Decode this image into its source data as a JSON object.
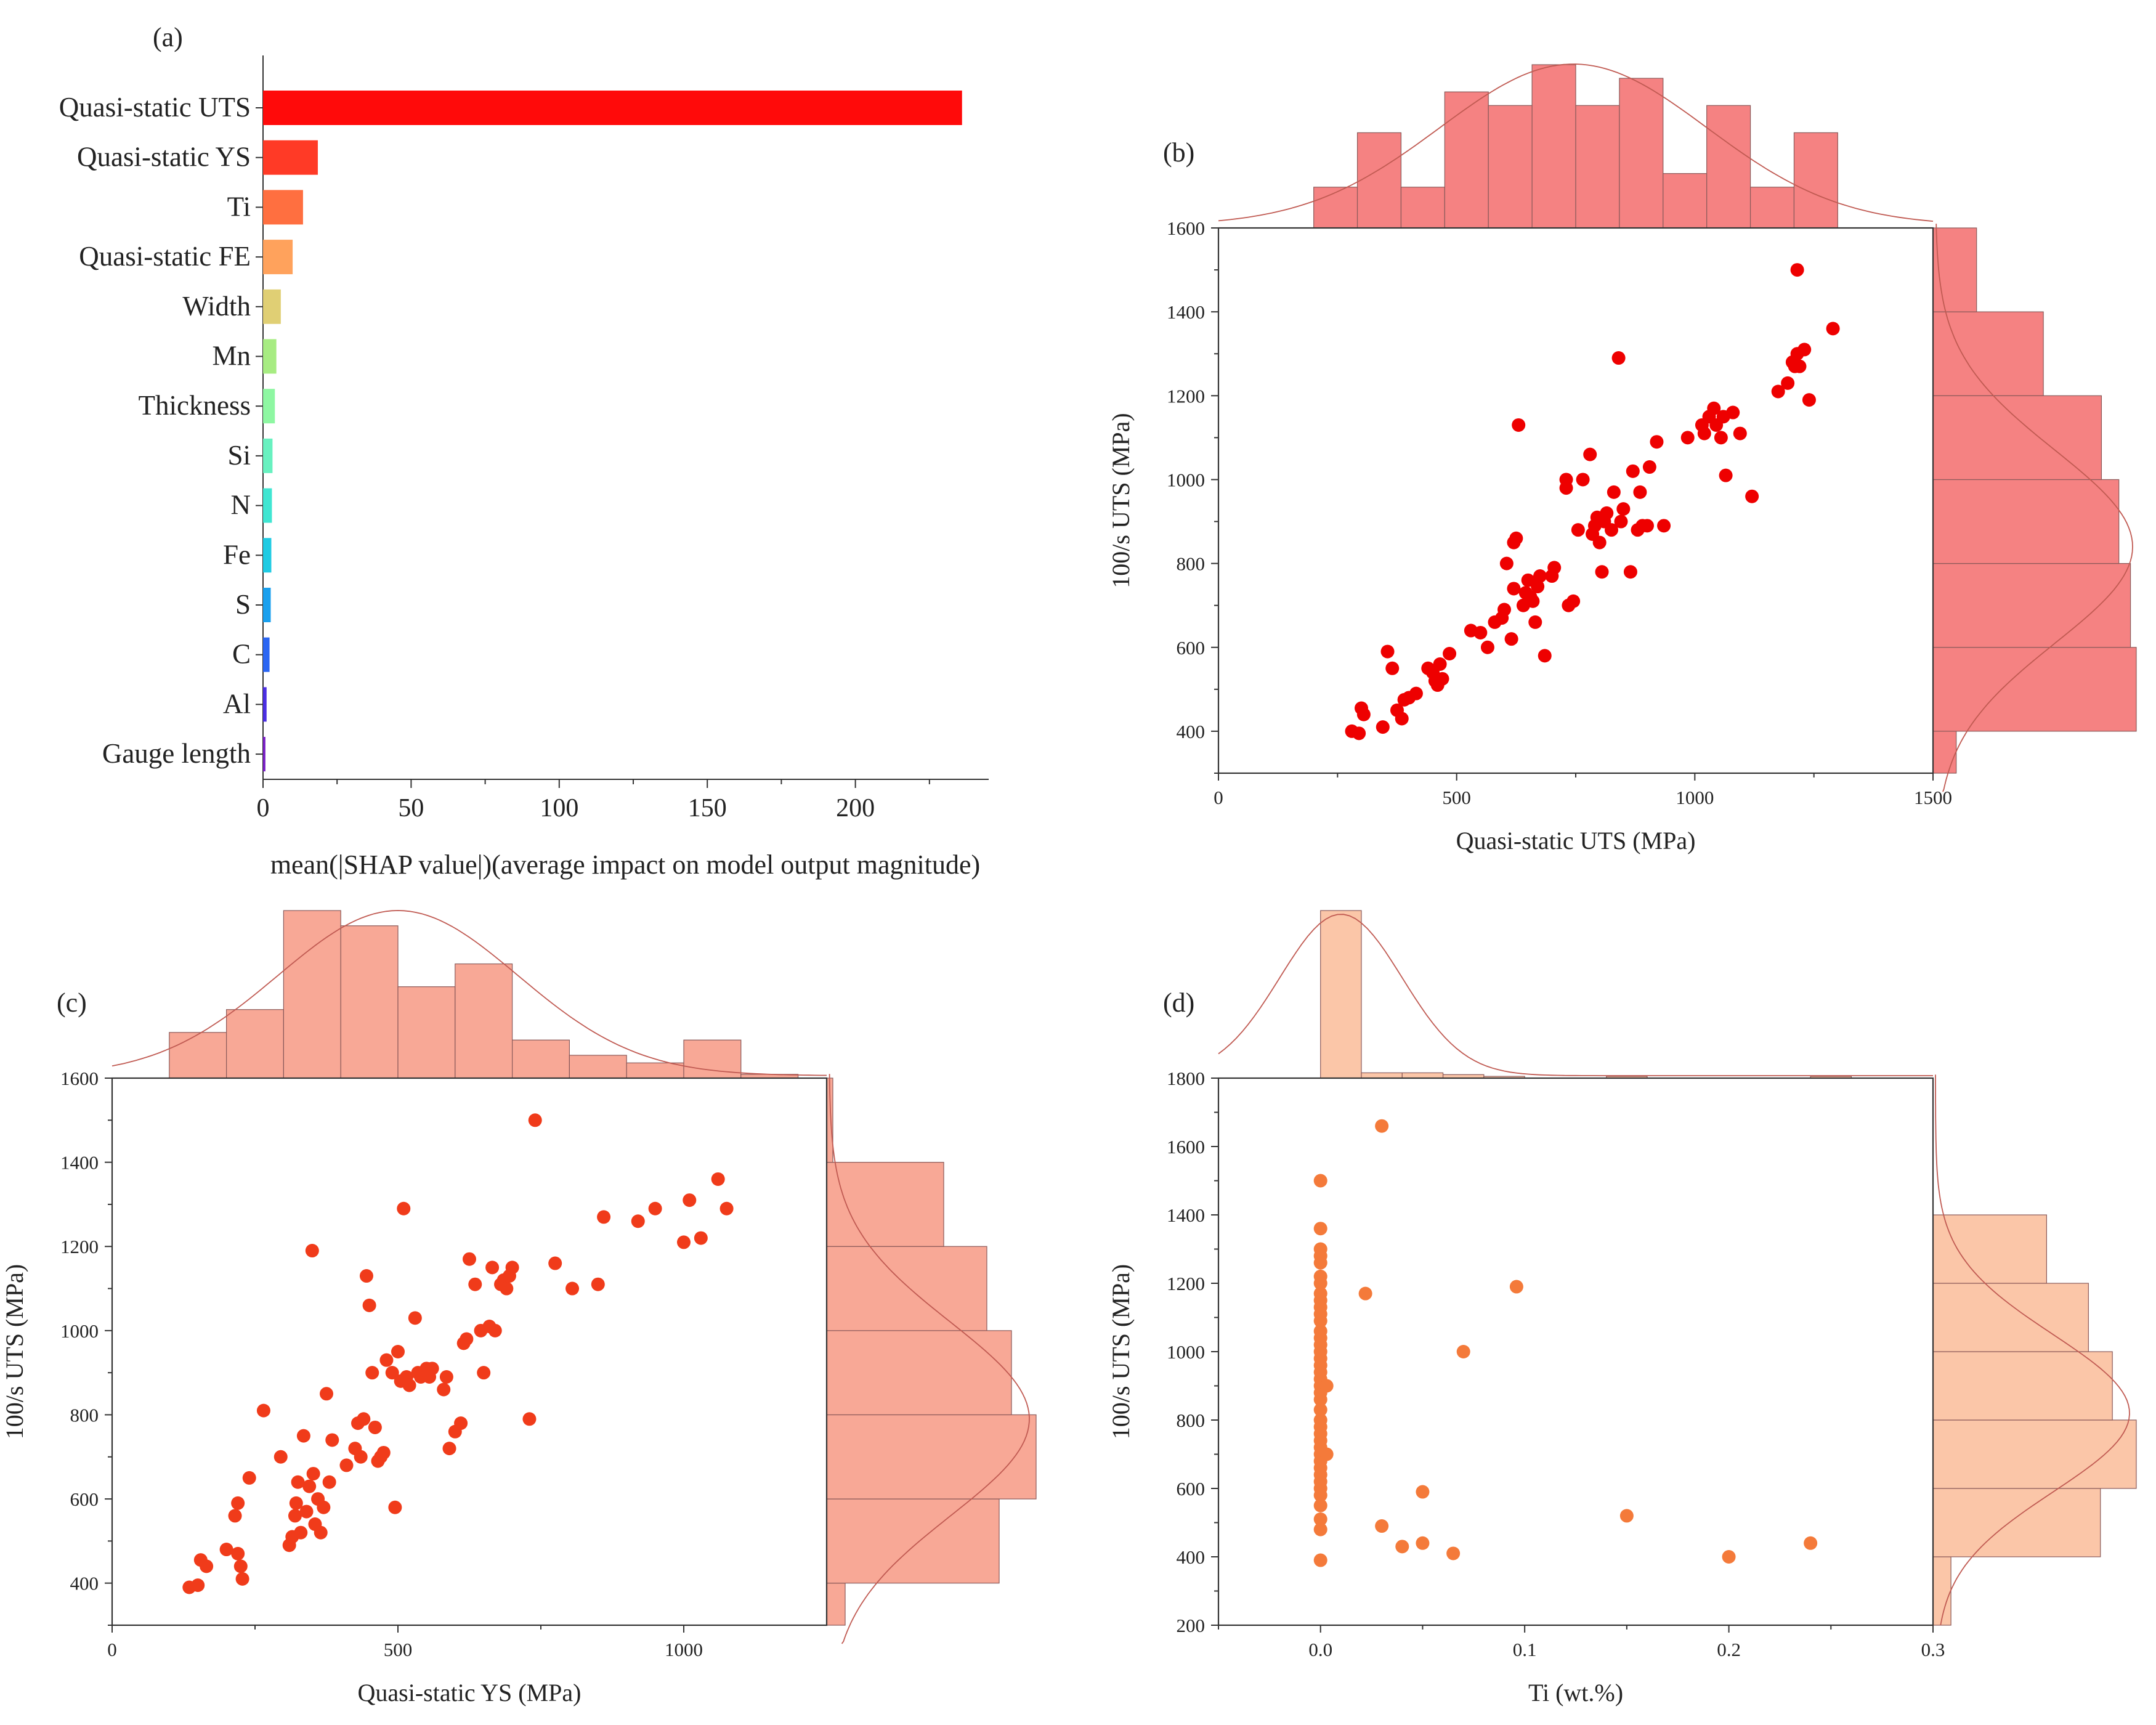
{
  "chart_data": [
    {
      "panel": "(a)",
      "type": "bar",
      "orientation": "horizontal",
      "xlabel": "mean(|SHAP value|)(average impact on model output magnitude)",
      "xlim": [
        0,
        245
      ],
      "xticks": [
        "0",
        "50",
        "100",
        "150",
        "200"
      ],
      "categories": [
        "Quasi-static UTS",
        "Quasi-static YS",
        "Ti",
        "Quasi-static FE",
        "Width",
        "Mn",
        "Thickness",
        "Si",
        "N",
        "Fe",
        "S",
        "C",
        "Al",
        "Gauge length"
      ],
      "values": [
        236,
        18.5,
        13.5,
        10,
        6,
        4.5,
        4,
        3.2,
        3,
        2.8,
        2.6,
        2.2,
        1.2,
        0.8
      ],
      "colors": [
        "#ff0a0a",
        "#ff3a26",
        "#ff6f40",
        "#ffa25c",
        "#e0cf74",
        "#a7ec82",
        "#8ef7a2",
        "#68f1c0",
        "#40e6d2",
        "#1fcbe3",
        "#1aa0ee",
        "#2b66f3",
        "#4b2ee4",
        "#7a1fc7"
      ]
    },
    {
      "panel": "(b)",
      "type": "scatter",
      "xlabel": "Quasi-static UTS (MPa)",
      "ylabel": "100/s UTS (MPa)",
      "xlim": [
        0,
        1500
      ],
      "ylim": [
        300,
        1600
      ],
      "xticks": [
        "0",
        "500",
        "1000",
        "1500"
      ],
      "yticks": [
        "400",
        "600",
        "800",
        "1000",
        "1200",
        "1400",
        "1600"
      ],
      "color": "#ee0000",
      "hist_color": "#f47b7b",
      "x_hist": {
        "edges": [
          200,
          1300
        ],
        "counts": [
          3,
          7,
          3,
          10,
          9,
          12,
          9,
          11,
          4,
          9,
          3,
          7
        ]
      },
      "y_hist": {
        "edges": [
          200,
          1600
        ],
        "counts": [
          0.8,
          7,
          6.8,
          6.4,
          5.8,
          3.8,
          1.5
        ]
      },
      "points": [
        [
          280,
          400
        ],
        [
          295,
          395
        ],
        [
          300,
          455
        ],
        [
          305,
          440
        ],
        [
          345,
          410
        ],
        [
          355,
          590
        ],
        [
          365,
          550
        ],
        [
          375,
          450
        ],
        [
          385,
          430
        ],
        [
          390,
          475
        ],
        [
          400,
          480
        ],
        [
          415,
          490
        ],
        [
          440,
          550
        ],
        [
          450,
          540
        ],
        [
          455,
          520
        ],
        [
          460,
          510
        ],
        [
          465,
          560
        ],
        [
          470,
          525
        ],
        [
          485,
          585
        ],
        [
          530,
          640
        ],
        [
          550,
          635
        ],
        [
          565,
          600
        ],
        [
          580,
          660
        ],
        [
          595,
          670
        ],
        [
          600,
          690
        ],
        [
          605,
          800
        ],
        [
          615,
          620
        ],
        [
          620,
          740
        ],
        [
          620,
          850
        ],
        [
          625,
          860
        ],
        [
          630,
          1130
        ],
        [
          640,
          700
        ],
        [
          645,
          730
        ],
        [
          650,
          760
        ],
        [
          655,
          720
        ],
        [
          660,
          710
        ],
        [
          665,
          660
        ],
        [
          670,
          745
        ],
        [
          675,
          770
        ],
        [
          685,
          580
        ],
        [
          700,
          770
        ],
        [
          705,
          790
        ],
        [
          730,
          1000
        ],
        [
          730,
          980
        ],
        [
          735,
          700
        ],
        [
          745,
          710
        ],
        [
          755,
          880
        ],
        [
          765,
          1000
        ],
        [
          780,
          1060
        ],
        [
          785,
          870
        ],
        [
          790,
          890
        ],
        [
          795,
          910
        ],
        [
          800,
          850
        ],
        [
          805,
          780
        ],
        [
          810,
          900
        ],
        [
          815,
          920
        ],
        [
          825,
          880
        ],
        [
          830,
          970
        ],
        [
          840,
          1290
        ],
        [
          845,
          900
        ],
        [
          850,
          930
        ],
        [
          865,
          780
        ],
        [
          870,
          1020
        ],
        [
          880,
          880
        ],
        [
          885,
          970
        ],
        [
          890,
          890
        ],
        [
          900,
          890
        ],
        [
          905,
          1030
        ],
        [
          920,
          1090
        ],
        [
          935,
          890
        ],
        [
          985,
          1100
        ],
        [
          1015,
          1130
        ],
        [
          1020,
          1110
        ],
        [
          1030,
          1150
        ],
        [
          1040,
          1170
        ],
        [
          1045,
          1130
        ],
        [
          1055,
          1100
        ],
        [
          1060,
          1150
        ],
        [
          1065,
          1010
        ],
        [
          1080,
          1160
        ],
        [
          1095,
          1110
        ],
        [
          1120,
          960
        ],
        [
          1175,
          1210
        ],
        [
          1195,
          1230
        ],
        [
          1205,
          1280
        ],
        [
          1210,
          1270
        ],
        [
          1215,
          1300
        ],
        [
          1220,
          1270
        ],
        [
          1230,
          1310
        ],
        [
          1240,
          1190
        ],
        [
          1290,
          1360
        ],
        [
          1215,
          1500
        ]
      ]
    },
    {
      "panel": "(c)",
      "type": "scatter",
      "xlabel": "Quasi-static YS (MPa)",
      "ylabel": "100/s UTS (MPa)",
      "xlim": [
        0,
        1250
      ],
      "ylim": [
        300,
        1600
      ],
      "xticks": [
        "0",
        "500",
        "1000"
      ],
      "yticks": [
        "400",
        "600",
        "800",
        "1000",
        "1200",
        "1400",
        "1600"
      ],
      "color": "#f03b1a",
      "hist_color": "#f8a390",
      "x_hist": {
        "edges": [
          100,
          1200
        ],
        "counts": [
          6,
          9,
          22,
          20,
          12,
          15,
          5,
          3,
          2,
          5,
          0.5
        ]
      },
      "y_hist": {
        "edges": [
          200,
          1600
        ],
        "counts": [
          1.5,
          14,
          17,
          15,
          13,
          9.5,
          0.5
        ]
      },
      "points": [
        [
          135,
          390
        ],
        [
          150,
          395
        ],
        [
          155,
          455
        ],
        [
          165,
          440
        ],
        [
          200,
          480
        ],
        [
          215,
          560
        ],
        [
          220,
          470
        ],
        [
          220,
          590
        ],
        [
          225,
          440
        ],
        [
          228,
          410
        ],
        [
          240,
          650
        ],
        [
          265,
          810
        ],
        [
          295,
          700
        ],
        [
          310,
          490
        ],
        [
          315,
          510
        ],
        [
          320,
          560
        ],
        [
          322,
          590
        ],
        [
          325,
          640
        ],
        [
          330,
          520
        ],
        [
          335,
          750
        ],
        [
          340,
          570
        ],
        [
          345,
          630
        ],
        [
          350,
          1190
        ],
        [
          352,
          660
        ],
        [
          355,
          540
        ],
        [
          360,
          600
        ],
        [
          365,
          520
        ],
        [
          370,
          580
        ],
        [
          375,
          850
        ],
        [
          380,
          640
        ],
        [
          385,
          740
        ],
        [
          410,
          680
        ],
        [
          425,
          720
        ],
        [
          430,
          780
        ],
        [
          435,
          700
        ],
        [
          440,
          790
        ],
        [
          445,
          1130
        ],
        [
          450,
          1060
        ],
        [
          455,
          900
        ],
        [
          460,
          770
        ],
        [
          465,
          690
        ],
        [
          470,
          700
        ],
        [
          475,
          710
        ],
        [
          480,
          930
        ],
        [
          490,
          900
        ],
        [
          495,
          580
        ],
        [
          500,
          950
        ],
        [
          505,
          880
        ],
        [
          510,
          1290
        ],
        [
          515,
          890
        ],
        [
          520,
          870
        ],
        [
          530,
          1030
        ],
        [
          535,
          900
        ],
        [
          540,
          890
        ],
        [
          550,
          910
        ],
        [
          555,
          890
        ],
        [
          560,
          910
        ],
        [
          580,
          860
        ],
        [
          585,
          890
        ],
        [
          590,
          720
        ],
        [
          600,
          760
        ],
        [
          610,
          780
        ],
        [
          615,
          970
        ],
        [
          620,
          980
        ],
        [
          625,
          1170
        ],
        [
          635,
          1110
        ],
        [
          645,
          1000
        ],
        [
          650,
          900
        ],
        [
          660,
          1010
        ],
        [
          665,
          1150
        ],
        [
          670,
          1000
        ],
        [
          680,
          1110
        ],
        [
          685,
          1120
        ],
        [
          690,
          1100
        ],
        [
          695,
          1130
        ],
        [
          700,
          1150
        ],
        [
          730,
          790
        ],
        [
          775,
          1160
        ],
        [
          805,
          1100
        ],
        [
          850,
          1110
        ],
        [
          860,
          1270
        ],
        [
          920,
          1260
        ],
        [
          950,
          1290
        ],
        [
          1000,
          1210
        ],
        [
          1010,
          1310
        ],
        [
          1030,
          1220
        ],
        [
          1060,
          1360
        ],
        [
          1075,
          1290
        ],
        [
          740,
          1500
        ]
      ]
    },
    {
      "panel": "(d)",
      "type": "scatter",
      "xlabel": "Ti (wt.%)",
      "ylabel": "100/s UTS (MPa)",
      "xlim": [
        -0.05,
        0.3
      ],
      "ylim": [
        200,
        1800
      ],
      "xticks": [
        "0.0",
        "0.1",
        "0.2",
        "0.3"
      ],
      "yticks": [
        "200",
        "400",
        "600",
        "800",
        "1000",
        "1200",
        "1400",
        "1600",
        "1800"
      ],
      "color": "#f47a3a",
      "hist_color": "#fbc3a3",
      "x_hist": {
        "edges": [
          0,
          0.26
        ],
        "counts": [
          95,
          3,
          3,
          2,
          1,
          0,
          0,
          1,
          0,
          0,
          0,
          0,
          1
        ]
      },
      "y_hist": {
        "edges": [
          200,
          1400
        ],
        "counts": [
          1.5,
          14,
          17,
          15,
          13,
          9.5
        ]
      },
      "points": [
        [
          0.0,
          390
        ],
        [
          0.0,
          480
        ],
        [
          0.0,
          510
        ],
        [
          0.0,
          550
        ],
        [
          0.0,
          580
        ],
        [
          0.0,
          600
        ],
        [
          0.0,
          620
        ],
        [
          0.0,
          640
        ],
        [
          0.0,
          660
        ],
        [
          0.0,
          680
        ],
        [
          0.0,
          700
        ],
        [
          0.0,
          720
        ],
        [
          0.0,
          740
        ],
        [
          0.0,
          760
        ],
        [
          0.0,
          780
        ],
        [
          0.0,
          800
        ],
        [
          0.0,
          830
        ],
        [
          0.0,
          860
        ],
        [
          0.0,
          880
        ],
        [
          0.0,
          900
        ],
        [
          0.0,
          920
        ],
        [
          0.0,
          940
        ],
        [
          0.0,
          960
        ],
        [
          0.0,
          980
        ],
        [
          0.0,
          1000
        ],
        [
          0.0,
          1020
        ],
        [
          0.0,
          1040
        ],
        [
          0.0,
          1060
        ],
        [
          0.0,
          1090
        ],
        [
          0.0,
          1110
        ],
        [
          0.0,
          1130
        ],
        [
          0.0,
          1150
        ],
        [
          0.0,
          1170
        ],
        [
          0.0,
          1200
        ],
        [
          0.0,
          1220
        ],
        [
          0.0,
          1260
        ],
        [
          0.0,
          1280
        ],
        [
          0.0,
          1300
        ],
        [
          0.0,
          1360
        ],
        [
          0.0,
          1500
        ],
        [
          0.003,
          700
        ],
        [
          0.003,
          900
        ],
        [
          0.022,
          1170
        ],
        [
          0.03,
          490
        ],
        [
          0.03,
          1660
        ],
        [
          0.04,
          430
        ],
        [
          0.05,
          440
        ],
        [
          0.05,
          590
        ],
        [
          0.065,
          410
        ],
        [
          0.07,
          1000
        ],
        [
          0.096,
          1190
        ],
        [
          0.15,
          520
        ],
        [
          0.2,
          400
        ],
        [
          0.24,
          440
        ]
      ]
    }
  ]
}
